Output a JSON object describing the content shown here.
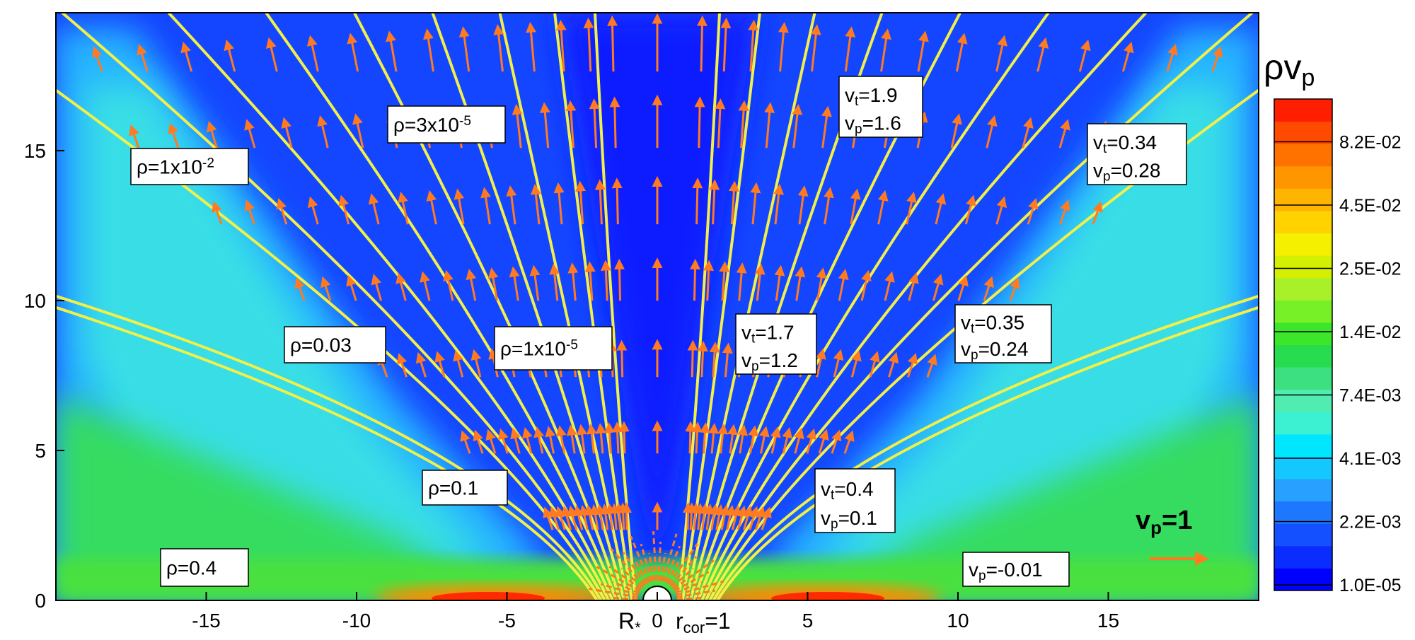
{
  "chart_data": {
    "type": "contour",
    "xlim": [
      -20,
      20
    ],
    "ylim": [
      0,
      19.6
    ],
    "xticks": [
      -15,
      -10,
      -5,
      0,
      5,
      10,
      15
    ],
    "yticks": [
      0,
      5,
      10,
      15
    ],
    "x_annotations": [
      [
        {
          "text": "R"
        },
        {
          "text": "*",
          "script": "sub"
        }
      ],
      [
        {
          "text": "r"
        },
        {
          "text": "cor",
          "script": "sub"
        },
        {
          "text": "=1"
        }
      ]
    ],
    "annotations": [
      {
        "lines": [
          [
            {
              "text": "ρ=1x10"
            },
            {
              "text": "-2",
              "script": "sup"
            }
          ]
        ]
      },
      {
        "lines": [
          [
            {
              "text": "ρ=3x10"
            },
            {
              "text": "-5",
              "script": "sup"
            }
          ]
        ]
      },
      {
        "lines": [
          [
            {
              "text": "v"
            },
            {
              "text": "t",
              "script": "sub"
            },
            {
              "text": "=1.9"
            }
          ],
          [
            {
              "text": "v"
            },
            {
              "text": "p",
              "script": "sub"
            },
            {
              "text": "=1.6"
            }
          ]
        ]
      },
      {
        "lines": [
          [
            {
              "text": "v"
            },
            {
              "text": "t",
              "script": "sub"
            },
            {
              "text": "=0.34"
            }
          ],
          [
            {
              "text": "v"
            },
            {
              "text": "p",
              "script": "sub"
            },
            {
              "text": "=0.28"
            }
          ]
        ]
      },
      {
        "lines": [
          [
            {
              "text": "ρ=0.03"
            }
          ]
        ]
      },
      {
        "lines": [
          [
            {
              "text": "ρ=1x10"
            },
            {
              "text": "-5",
              "script": "sup"
            }
          ]
        ]
      },
      {
        "lines": [
          [
            {
              "text": "v"
            },
            {
              "text": "t",
              "script": "sub"
            },
            {
              "text": "=1.7"
            }
          ],
          [
            {
              "text": "v"
            },
            {
              "text": "p",
              "script": "sub"
            },
            {
              "text": "=1.2"
            }
          ]
        ]
      },
      {
        "lines": [
          [
            {
              "text": "v"
            },
            {
              "text": "t",
              "script": "sub"
            },
            {
              "text": "=0.35"
            }
          ],
          [
            {
              "text": "v"
            },
            {
              "text": "p",
              "script": "sub"
            },
            {
              "text": "=0.24"
            }
          ]
        ]
      },
      {
        "lines": [
          [
            {
              "text": "ρ=0.1"
            }
          ]
        ]
      },
      {
        "lines": [
          [
            {
              "text": "v"
            },
            {
              "text": "t",
              "script": "sub"
            },
            {
              "text": "=0.4"
            }
          ],
          [
            {
              "text": "v"
            },
            {
              "text": "p",
              "script": "sub"
            },
            {
              "text": "=0.1"
            }
          ]
        ]
      },
      {
        "lines": [
          [
            {
              "text": "ρ=0.4"
            }
          ]
        ]
      },
      {
        "lines": [
          [
            {
              "text": "v"
            },
            {
              "text": "p",
              "script": "sub"
            },
            {
              "text": "=-0.01"
            }
          ]
        ]
      }
    ],
    "vector_legend": [
      {
        "text": "v"
      },
      {
        "text": "p",
        "script": "sub"
      },
      {
        "text": "=1"
      }
    ],
    "vector_color": "#ff7a20",
    "streamline_color": "#f2f048",
    "colorbar": {
      "title": [
        {
          "text": "ρv"
        },
        {
          "text": "p",
          "script": "sub"
        }
      ],
      "ticks": [
        {
          "value": 1e-05,
          "label": "1.0E-05"
        },
        {
          "value": 0.0022,
          "label": "2.2E-03"
        },
        {
          "value": 0.0041,
          "label": "4.1E-03"
        },
        {
          "value": 0.0074,
          "label": "7.4E-03"
        },
        {
          "value": 0.014,
          "label": "1.4E-02"
        },
        {
          "value": 0.025,
          "label": "2.5E-02"
        },
        {
          "value": 0.045,
          "label": "4.5E-02"
        },
        {
          "value": 0.082,
          "label": "8.2E-02"
        }
      ],
      "colors": [
        "#0000ff",
        "#0a2cff",
        "#1450ff",
        "#1e78ff",
        "#28a0ff",
        "#14c8ff",
        "#00e6ff",
        "#3cf0d2",
        "#50ecb0",
        "#3ce080",
        "#28dc50",
        "#3ce628",
        "#78f028",
        "#a8f028",
        "#d2f000",
        "#f5f000",
        "#ffd200",
        "#ffb400",
        "#ff9600",
        "#ff7200",
        "#ff4a00",
        "#ff1e00"
      ]
    }
  }
}
